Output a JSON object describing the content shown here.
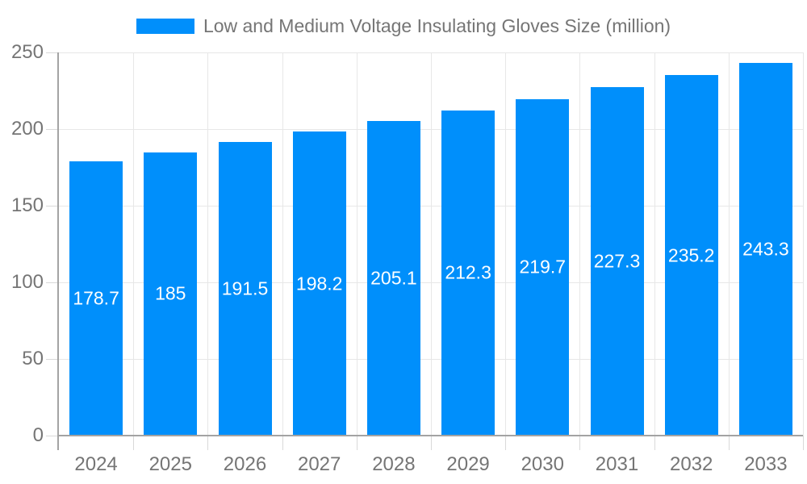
{
  "legend": {
    "label": "Low and Medium Voltage Insulating Gloves Size (million)"
  },
  "colors": {
    "bar": "#008FFB",
    "bar_label": "#ffffff",
    "axis_text": "#757575",
    "grid_line": "#e7e7e7",
    "tick_line": "#d9d9d9",
    "axis_line": "#a3a3a3",
    "background": "#ffffff"
  },
  "chart_data": {
    "type": "bar",
    "title": "Low and Medium Voltage Insulating Gloves Size (million)",
    "categories": [
      "2024",
      "2025",
      "2026",
      "2027",
      "2028",
      "2029",
      "2030",
      "2031",
      "2032",
      "2033"
    ],
    "series": [
      {
        "name": "Low and Medium Voltage Insulating Gloves Size (million)",
        "values": [
          178.7,
          185,
          191.5,
          198.2,
          205.1,
          212.3,
          219.7,
          227.3,
          235.2,
          243.3
        ]
      }
    ],
    "value_labels": [
      "178.7",
      "185",
      "191.5",
      "198.2",
      "205.1",
      "212.3",
      "219.7",
      "227.3",
      "235.2",
      "243.3"
    ],
    "xlabel": "",
    "ylabel": "",
    "ylim": [
      0,
      250
    ],
    "yticks": [
      0,
      50,
      100,
      150,
      200,
      250
    ],
    "grid": true,
    "legend_position": "top"
  }
}
